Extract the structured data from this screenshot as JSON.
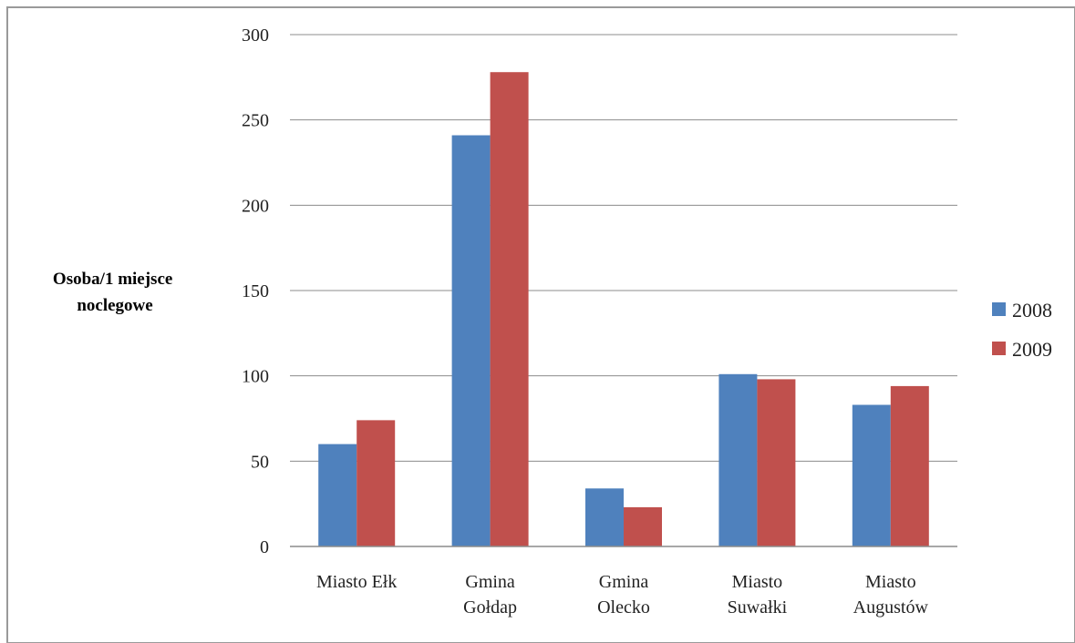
{
  "chart_data": {
    "type": "bar",
    "title": "",
    "xlabel": "",
    "ylabel": "Osoba/1 miejsce noclegowe",
    "ylabel_lines": [
      "Osoba/1 miejsce",
      "noclegowe"
    ],
    "ylim": [
      0,
      300
    ],
    "yticks": [
      0,
      50,
      100,
      150,
      200,
      250,
      300
    ],
    "grid": true,
    "legend_position": "right",
    "categories": [
      [
        "Miasto Ełk"
      ],
      [
        "Gmina",
        "Gołdap"
      ],
      [
        "Gmina",
        "Olecko"
      ],
      [
        "Miasto",
        "Suwałki"
      ],
      [
        "Miasto",
        "Augustów"
      ]
    ],
    "series": [
      {
        "name": "2008",
        "color": "#4f81bd",
        "values": [
          60,
          241,
          34,
          101,
          83
        ]
      },
      {
        "name": "2009",
        "color": "#c0504d",
        "values": [
          74,
          278,
          23,
          98,
          94
        ]
      }
    ]
  }
}
